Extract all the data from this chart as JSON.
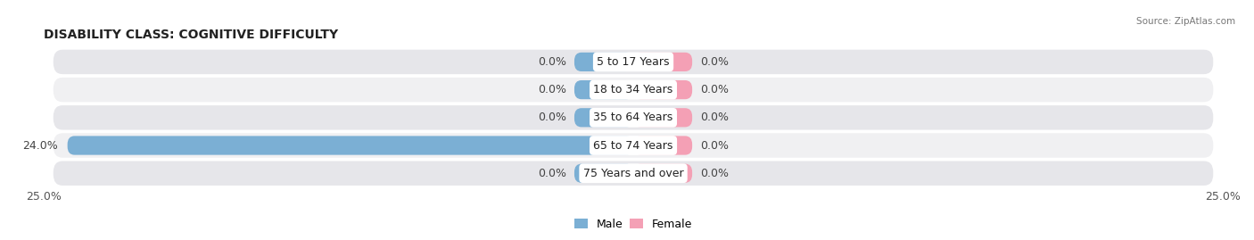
{
  "title": "DISABILITY CLASS: COGNITIVE DIFFICULTY",
  "source": "Source: ZipAtlas.com",
  "categories": [
    "5 to 17 Years",
    "18 to 34 Years",
    "35 to 64 Years",
    "65 to 74 Years",
    "75 Years and over"
  ],
  "male_values": [
    0.0,
    0.0,
    0.0,
    24.0,
    0.0
  ],
  "female_values": [
    0.0,
    0.0,
    0.0,
    0.0,
    0.0
  ],
  "male_color": "#7bafd4",
  "female_color": "#f4a0b5",
  "row_bg_even": "#f0f0f2",
  "row_bg_odd": "#e6e6ea",
  "max_value": 25.0,
  "title_fontsize": 10,
  "label_fontsize": 9,
  "tick_fontsize": 9,
  "background_color": "#ffffff",
  "bar_height": 0.68,
  "stub_size": 2.5
}
